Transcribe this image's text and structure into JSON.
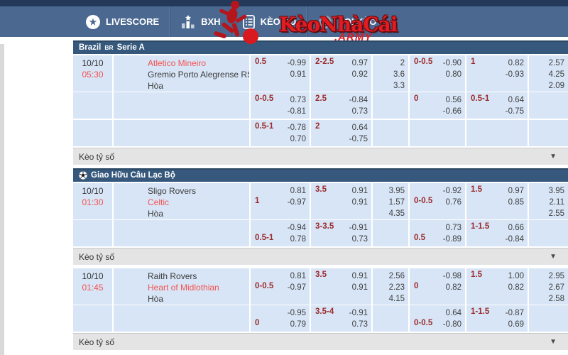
{
  "nav": {
    "items": [
      {
        "label": "LIVESCORE",
        "icon": "star-icon"
      },
      {
        "label": "BXH",
        "icon": "bar-chart-icon"
      },
      {
        "label": "KÈO BĐ",
        "icon": "clipboard-icon"
      },
      {
        "label": "SOI KÈO",
        "icon": "whistle-icon"
      }
    ],
    "logo": {
      "text": "KèoNhàCái",
      "suffix": ".ARMY"
    }
  },
  "colors": {
    "top_strip": "#24395a",
    "nav_bg": "#4a6890",
    "section_header_bg": "#35587c",
    "row_bg": "#d7e5f6",
    "handicap_red": "#9c2b2b",
    "team_red": "#f45350",
    "logo_red": "#e11c23",
    "score_row_bg": "#e4e4e4"
  },
  "score_row_label": "Kèo tỷ số",
  "sections": [
    {
      "title_prefix": "Brazil",
      "title_tag": "BR",
      "title_name": "Serie A",
      "ball_icon": false,
      "matches": [
        {
          "date": "10/10",
          "time": "05:30",
          "teams": [
            {
              "name": "Atletico Mineiro",
              "red": true
            },
            {
              "name": "Gremio Porto Alegrense RS",
              "red": false
            },
            {
              "name": "Hòa",
              "red": false
            }
          ],
          "rows": [
            {
              "cells": [
                {
                  "type": "hdp",
                  "value": "0.5",
                  "line": 1,
                  "odds": [
                    "-0.99",
                    "0.91"
                  ]
                },
                {
                  "type": "hdp",
                  "value": "2-2.5",
                  "line": 1,
                  "odds": [
                    "0.97",
                    "0.92"
                  ]
                },
                {
                  "type": "x12",
                  "values": [
                    "2",
                    "3.6",
                    "3.3"
                  ]
                },
                {
                  "type": "hdp",
                  "value": "0-0.5",
                  "line": 1,
                  "odds": [
                    "-0.90",
                    "0.80"
                  ]
                },
                {
                  "type": "hdp",
                  "value": "1",
                  "line": 1,
                  "odds": [
                    "0.82",
                    "-0.93"
                  ]
                },
                {
                  "type": "x12",
                  "values": [
                    "2.57",
                    "4.25",
                    "2.09"
                  ]
                }
              ]
            },
            {
              "cells": [
                {
                  "type": "hdp",
                  "value": "0-0.5",
                  "line": 1,
                  "odds": [
                    "0.73",
                    "-0.81"
                  ]
                },
                {
                  "type": "hdp",
                  "value": "2.5",
                  "line": 1,
                  "odds": [
                    "-0.84",
                    "0.73"
                  ]
                },
                {
                  "type": "x12",
                  "values": []
                },
                {
                  "type": "hdp",
                  "value": "0",
                  "line": 1,
                  "odds": [
                    "0.56",
                    "-0.66"
                  ]
                },
                {
                  "type": "hdp",
                  "value": "0.5-1",
                  "line": 1,
                  "odds": [
                    "0.64",
                    "-0.75"
                  ]
                },
                {
                  "type": "x12",
                  "values": []
                }
              ]
            },
            {
              "cells": [
                {
                  "type": "hdp",
                  "value": "0.5-1",
                  "line": 1,
                  "odds": [
                    "-0.78",
                    "0.70"
                  ]
                },
                {
                  "type": "hdp",
                  "value": "2",
                  "line": 1,
                  "odds": [
                    "0.64",
                    "-0.75"
                  ]
                },
                {
                  "type": "x12",
                  "values": []
                },
                {
                  "type": "empty"
                },
                {
                  "type": "empty"
                },
                {
                  "type": "empty"
                }
              ]
            }
          ]
        }
      ]
    },
    {
      "title_prefix": "",
      "title_tag": "",
      "title_name": "Giao Hữu Câu Lạc Bộ",
      "ball_icon": true,
      "matches": [
        {
          "date": "10/10",
          "time": "01:30",
          "teams": [
            {
              "name": "Sligo Rovers",
              "red": false
            },
            {
              "name": "Celtic",
              "red": true
            },
            {
              "name": "Hòa",
              "red": false
            }
          ],
          "rows": [
            {
              "cells": [
                {
                  "type": "hdp",
                  "value": "1",
                  "line": 2,
                  "odds": [
                    "0.81",
                    "-0.97"
                  ]
                },
                {
                  "type": "hdp",
                  "value": "3.5",
                  "line": 1,
                  "odds": [
                    "0.91",
                    "0.91"
                  ]
                },
                {
                  "type": "x12",
                  "values": [
                    "3.95",
                    "1.57",
                    "4.35"
                  ]
                },
                {
                  "type": "hdp",
                  "value": "0-0.5",
                  "line": 2,
                  "odds": [
                    "-0.92",
                    "0.76"
                  ]
                },
                {
                  "type": "hdp",
                  "value": "1.5",
                  "line": 1,
                  "odds": [
                    "0.97",
                    "0.85"
                  ]
                },
                {
                  "type": "x12",
                  "values": [
                    "3.95",
                    "2.11",
                    "2.55"
                  ]
                }
              ]
            },
            {
              "cells": [
                {
                  "type": "hdp",
                  "value": "0.5-1",
                  "line": 2,
                  "odds": [
                    "-0.94",
                    "0.78"
                  ]
                },
                {
                  "type": "hdp",
                  "value": "3-3.5",
                  "line": 1,
                  "odds": [
                    "-0.91",
                    "0.73"
                  ]
                },
                {
                  "type": "x12",
                  "values": []
                },
                {
                  "type": "hdp",
                  "value": "0.5",
                  "line": 2,
                  "odds": [
                    "0.73",
                    "-0.89"
                  ]
                },
                {
                  "type": "hdp",
                  "value": "1-1.5",
                  "line": 1,
                  "odds": [
                    "0.66",
                    "-0.84"
                  ]
                },
                {
                  "type": "x12",
                  "values": []
                }
              ]
            }
          ]
        },
        {
          "date": "10/10",
          "time": "01:45",
          "teams": [
            {
              "name": "Raith Rovers",
              "red": false
            },
            {
              "name": "Heart of Midlothian",
              "red": true
            },
            {
              "name": "Hòa",
              "red": false
            }
          ],
          "rows": [
            {
              "cells": [
                {
                  "type": "hdp",
                  "value": "0-0.5",
                  "line": 2,
                  "odds": [
                    "0.81",
                    "-0.97"
                  ]
                },
                {
                  "type": "hdp",
                  "value": "3.5",
                  "line": 1,
                  "odds": [
                    "0.91",
                    "0.91"
                  ]
                },
                {
                  "type": "x12",
                  "values": [
                    "2.56",
                    "2.23",
                    "4.15"
                  ]
                },
                {
                  "type": "hdp",
                  "value": "0",
                  "line": 2,
                  "odds": [
                    "-0.98",
                    "0.82"
                  ]
                },
                {
                  "type": "hdp",
                  "value": "1.5",
                  "line": 1,
                  "odds": [
                    "1.00",
                    "0.82"
                  ]
                },
                {
                  "type": "x12",
                  "values": [
                    "2.95",
                    "2.67",
                    "2.58"
                  ]
                }
              ]
            },
            {
              "cells": [
                {
                  "type": "hdp",
                  "value": "0",
                  "line": 2,
                  "odds": [
                    "-0.95",
                    "0.79"
                  ]
                },
                {
                  "type": "hdp",
                  "value": "3.5-4",
                  "line": 1,
                  "odds": [
                    "-0.91",
                    "0.73"
                  ]
                },
                {
                  "type": "x12",
                  "values": []
                },
                {
                  "type": "hdp",
                  "value": "0-0.5",
                  "line": 2,
                  "odds": [
                    "0.64",
                    "-0.80"
                  ]
                },
                {
                  "type": "hdp",
                  "value": "1-1.5",
                  "line": 1,
                  "odds": [
                    "-0.87",
                    "0.69"
                  ]
                },
                {
                  "type": "x12",
                  "values": []
                }
              ]
            }
          ]
        }
      ]
    }
  ]
}
